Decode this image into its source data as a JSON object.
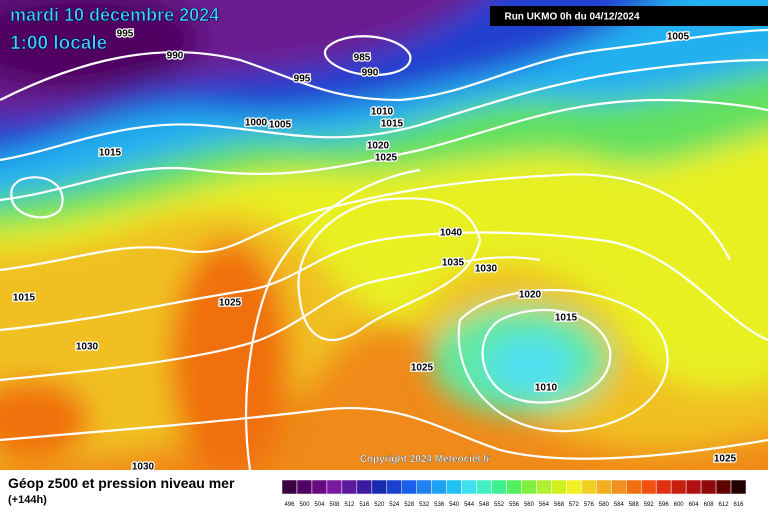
{
  "header": {
    "title": "mardi 10 décembre 2024",
    "time": "1:00 locale",
    "run": "Run UKMO 0h du 04/12/2024"
  },
  "isobar_labels": [
    995,
    990,
    985,
    990,
    995,
    1005,
    1010,
    1000,
    1005,
    1015,
    1015,
    1020,
    1025,
    1040,
    1035,
    1030,
    1015,
    1025,
    1020,
    1015,
    1030,
    1025,
    1010,
    1025,
    1030
  ],
  "copyright": "Copyright 2024 Meteociel.fr",
  "footer": {
    "title": "Géop z500 et pression niveau mer",
    "subtitle": "(+144h)"
  },
  "scale": {
    "values": [
      496,
      500,
      504,
      508,
      512,
      516,
      520,
      524,
      528,
      532,
      536,
      540,
      544,
      548,
      552,
      556,
      560,
      564,
      568,
      572,
      576,
      580,
      584,
      588,
      592,
      596,
      600,
      604,
      608,
      612,
      616
    ],
    "colors": [
      "#3a0040",
      "#500060",
      "#6a0a80",
      "#7a1aa0",
      "#5a1a9a",
      "#3a1aa0",
      "#1a2ab0",
      "#1a40d0",
      "#1a60e8",
      "#2080f0",
      "#20a0f0",
      "#20c0f0",
      "#40e0f0",
      "#40f0c0",
      "#40f090",
      "#50f060",
      "#80f040",
      "#b0f030",
      "#d0f020",
      "#f0f020",
      "#f0d020",
      "#f0b020",
      "#f09020",
      "#f07010",
      "#f05010",
      "#e03010",
      "#c82010",
      "#b01010",
      "#900808",
      "#600000",
      "#200000"
    ]
  }
}
